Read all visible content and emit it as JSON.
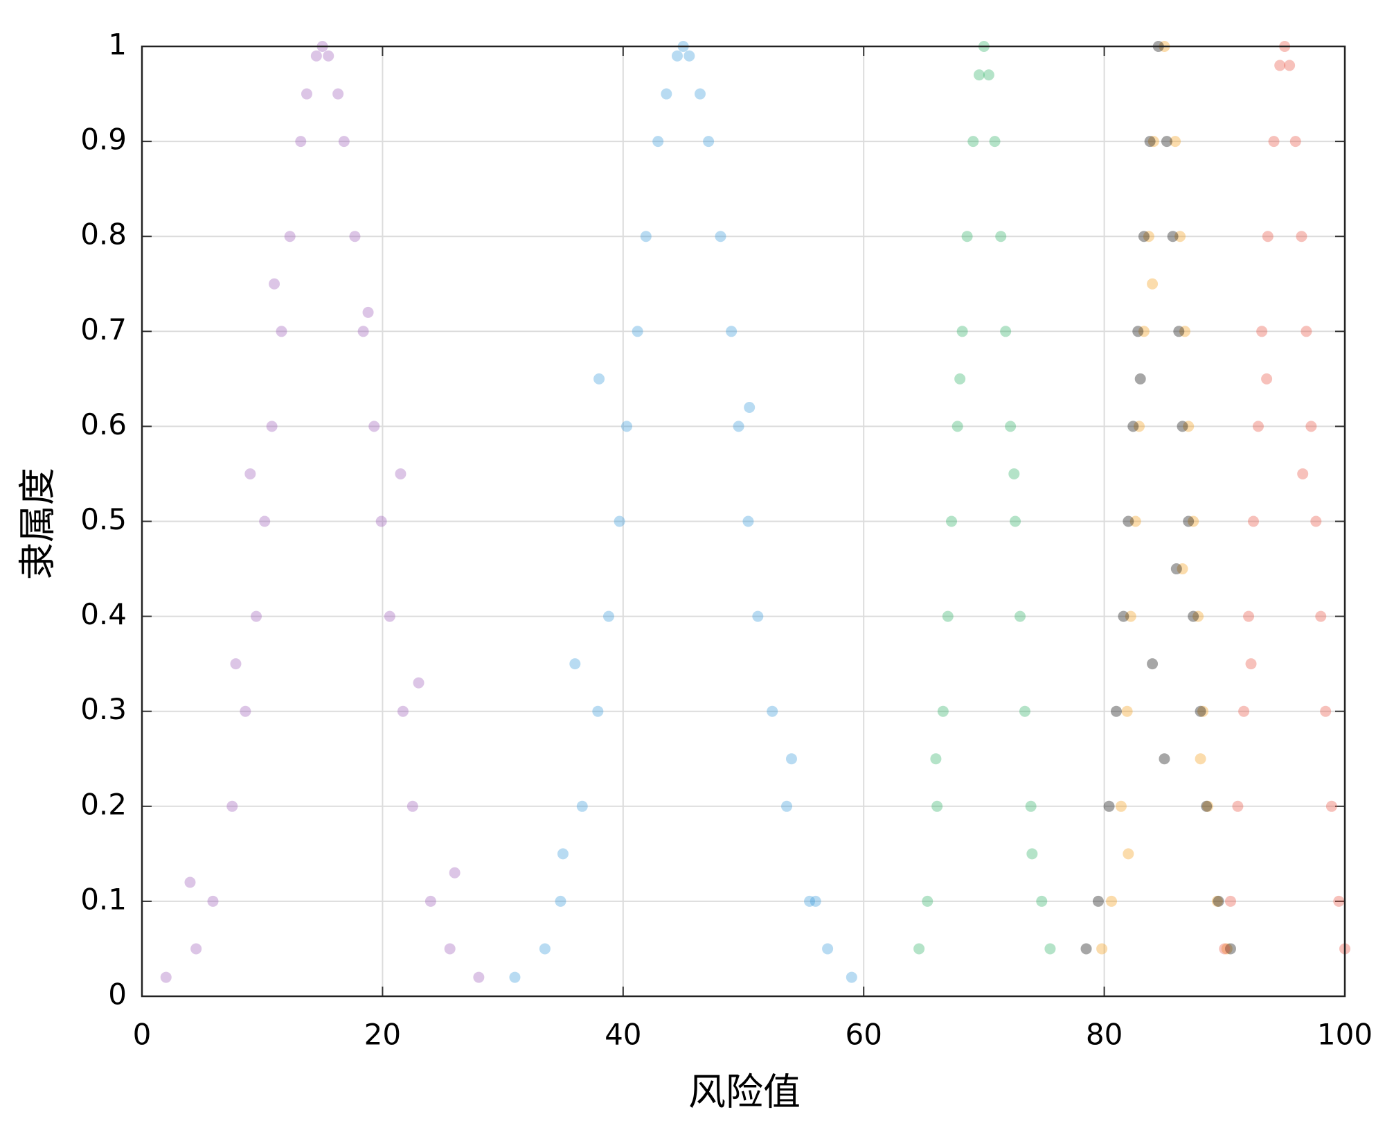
{
  "chart_data": {
    "type": "scatter",
    "xlabel": "风险值",
    "ylabel": "隶属度",
    "xlim": [
      0,
      100
    ],
    "xticks": [
      0,
      20,
      40,
      60,
      80,
      100
    ],
    "ylim": [
      0,
      1
    ],
    "yticks": [
      0,
      0.1,
      0.2,
      0.3,
      0.4,
      0.5,
      0.6,
      0.7,
      0.8,
      0.9,
      1
    ],
    "grid": true,
    "opacity": 0.35,
    "series": [
      {
        "color": "#9b59b6",
        "x": [
          15,
          13.7,
          16.3,
          13.2,
          16.8,
          12.3,
          17.7,
          11.6,
          18.4,
          10.8,
          19.3,
          10.2,
          19.9,
          9.5,
          20.6,
          8.6,
          21.7,
          7.5,
          22.5,
          5.9,
          24.0,
          4.5,
          25.6,
          2,
          28,
          9.0,
          21.5,
          7.8,
          23,
          11,
          18.8,
          4,
          26,
          14.5,
          15.5
        ],
        "y": [
          1,
          0.95,
          0.95,
          0.9,
          0.9,
          0.8,
          0.8,
          0.7,
          0.7,
          0.6,
          0.6,
          0.5,
          0.5,
          0.4,
          0.4,
          0.3,
          0.3,
          0.2,
          0.2,
          0.1,
          0.1,
          0.05,
          0.05,
          0.02,
          0.02,
          0.55,
          0.55,
          0.35,
          0.33,
          0.75,
          0.72,
          0.12,
          0.13,
          0.99,
          0.99
        ]
      },
      {
        "color": "#3498db",
        "x": [
          45,
          43.6,
          46.4,
          42.9,
          47.1,
          41.9,
          48.1,
          41.2,
          49.0,
          40.3,
          49.6,
          39.7,
          50.4,
          38.8,
          51.2,
          37.9,
          52.4,
          36.6,
          53.6,
          34.8,
          55.5,
          33.5,
          57,
          31,
          59,
          38,
          50.5,
          36,
          54,
          35,
          56,
          44.5,
          45.5
        ],
        "y": [
          1,
          0.95,
          0.95,
          0.9,
          0.9,
          0.8,
          0.8,
          0.7,
          0.7,
          0.6,
          0.6,
          0.5,
          0.5,
          0.4,
          0.4,
          0.3,
          0.3,
          0.2,
          0.2,
          0.1,
          0.1,
          0.05,
          0.05,
          0.02,
          0.02,
          0.65,
          0.62,
          0.35,
          0.25,
          0.15,
          0.1,
          0.99,
          0.99
        ]
      },
      {
        "color": "#27ae60",
        "x": [
          70,
          69.1,
          70.9,
          68.6,
          71.4,
          68.2,
          71.8,
          67.8,
          72.2,
          67.3,
          72.6,
          67.0,
          73.0,
          66.6,
          73.4,
          66.1,
          73.9,
          65.3,
          74.8,
          64.6,
          75.5,
          68,
          72.5,
          66,
          74,
          69.6,
          70.4
        ],
        "y": [
          1,
          0.9,
          0.9,
          0.8,
          0.8,
          0.7,
          0.7,
          0.6,
          0.6,
          0.5,
          0.5,
          0.4,
          0.4,
          0.3,
          0.3,
          0.2,
          0.2,
          0.1,
          0.1,
          0.05,
          0.05,
          0.65,
          0.55,
          0.25,
          0.15,
          0.97,
          0.97
        ]
      },
      {
        "color": "#f39c12",
        "x": [
          85,
          84.1,
          85.9,
          83.7,
          86.3,
          83.3,
          86.7,
          82.9,
          87.0,
          82.6,
          87.4,
          82.2,
          87.8,
          81.9,
          88.2,
          81.4,
          88.6,
          80.6,
          89.4,
          79.8,
          90.2,
          84,
          86.5,
          82,
          88
        ],
        "y": [
          1,
          0.9,
          0.9,
          0.8,
          0.8,
          0.7,
          0.7,
          0.6,
          0.6,
          0.5,
          0.5,
          0.4,
          0.4,
          0.3,
          0.3,
          0.2,
          0.2,
          0.1,
          0.1,
          0.05,
          0.05,
          0.75,
          0.45,
          0.15,
          0.25
        ]
      },
      {
        "color": "#000000",
        "x": [
          84.5,
          83.8,
          85.2,
          83.3,
          85.7,
          82.8,
          86.2,
          82.4,
          86.5,
          82.0,
          87.0,
          81.6,
          87.4,
          81.0,
          88.0,
          80.4,
          88.5,
          79.5,
          89.5,
          78.5,
          90.5,
          83,
          86,
          84,
          85
        ],
        "y": [
          1,
          0.9,
          0.9,
          0.8,
          0.8,
          0.7,
          0.7,
          0.6,
          0.6,
          0.5,
          0.5,
          0.4,
          0.4,
          0.3,
          0.3,
          0.2,
          0.2,
          0.1,
          0.1,
          0.05,
          0.05,
          0.65,
          0.45,
          0.35,
          0.25
        ]
      },
      {
        "color": "#e74c3c",
        "x": [
          95,
          94.1,
          95.9,
          93.6,
          96.4,
          93.1,
          96.8,
          92.8,
          97.2,
          92.4,
          97.6,
          92.0,
          98.0,
          91.6,
          98.4,
          91.1,
          98.9,
          90.5,
          99.5,
          90,
          100,
          93.5,
          96.5,
          92.2,
          94.6,
          95.4
        ],
        "y": [
          1,
          0.9,
          0.9,
          0.8,
          0.8,
          0.7,
          0.7,
          0.6,
          0.6,
          0.5,
          0.5,
          0.4,
          0.4,
          0.3,
          0.3,
          0.2,
          0.2,
          0.1,
          0.1,
          0.05,
          0.05,
          0.65,
          0.55,
          0.35,
          0.98,
          0.98
        ]
      }
    ]
  }
}
